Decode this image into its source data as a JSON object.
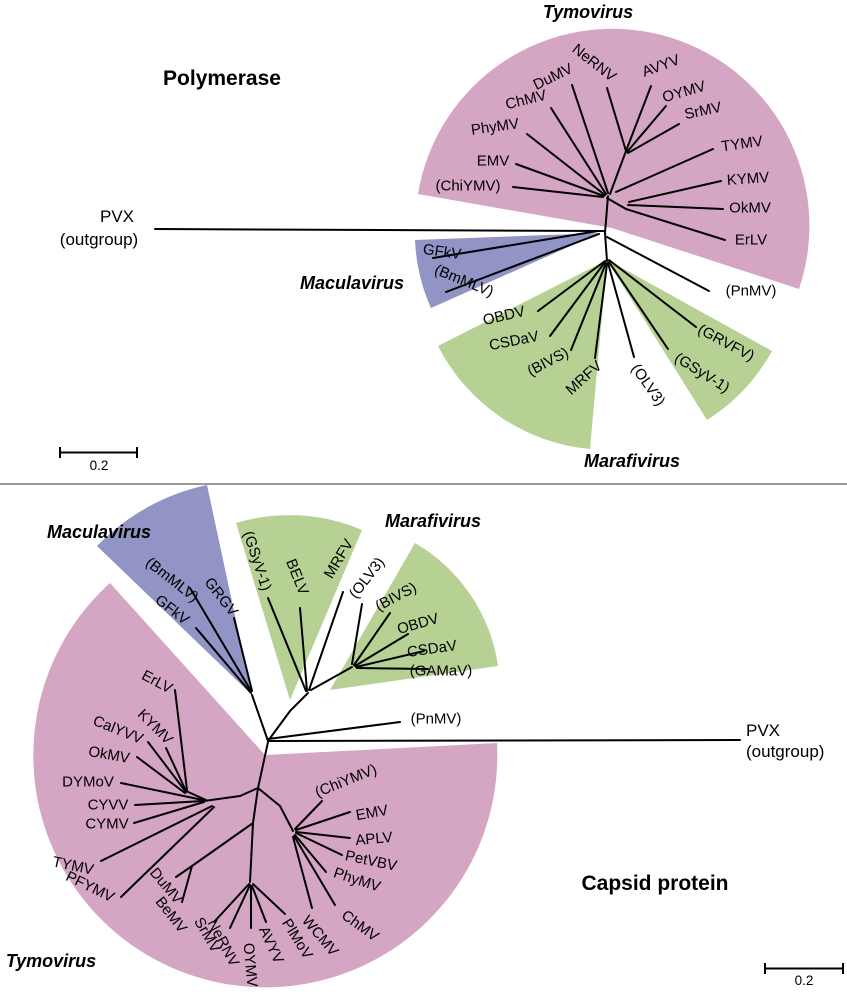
{
  "colors": {
    "tymovirus_pink": "#d5a6c3",
    "maculavirus_purple": "#9194c4",
    "marafivirus_green": "#b7d194",
    "branch": "#000000",
    "divider": "#9a9a9a"
  },
  "polymerase_tree": {
    "title": "Polymerase",
    "tymovirus_label": "Tymovirus",
    "maculavirus_label": "Maculavirus",
    "marafivirus_label": "Marafivirus",
    "outgroup_name": "PVX",
    "outgroup_suffix": "(outgroup)",
    "scale_bar_value": "0.2",
    "taxa": {
      "chiymv": "(ChiYMV)",
      "emv": "EMV",
      "phymv": "PhyMV",
      "chmv": "ChMV",
      "dumv": "DuMV",
      "nernv": "NeRNV",
      "avyv": "AVYV",
      "oymv": "OYMV",
      "srmv": "SrMV",
      "tymv": "TYMV",
      "kymv": "KYMV",
      "okmv": "OkMV",
      "erlv": "ErLV",
      "pnmv": "(PnMV)",
      "gfkv": "GFkV",
      "bmmlv": "(BmMLV)",
      "obdv": "OBDV",
      "csdav": "CSDaV",
      "bivs": "(BIVS)",
      "mrfv": "MRFV",
      "olv3": "(OLV3)",
      "gsyv1": "(GSyV-1)",
      "grvfv": "(GRVFV)"
    }
  },
  "capsid_tree": {
    "title": "Capsid protein",
    "tymovirus_label": "Tymovirus",
    "maculavirus_label": "Maculavirus",
    "marafivirus_label": "Marafivirus",
    "outgroup_name": "PVX",
    "outgroup_suffix": "(outgroup)",
    "scale_bar_value": "0.2",
    "taxa": {
      "erlv": "ErLV",
      "kymv": "KYMV",
      "calyvv": "CalYVV",
      "okmv": "OkMV",
      "dymov": "DYMoV",
      "cyvv": "CYVV",
      "cymv": "CYMV",
      "tymv": "TYMV",
      "pfymv": "PFYMV",
      "dumv": "DuMV",
      "bemv": "BeMV",
      "srmv": "SrMV",
      "nernv": "NeRNV",
      "oymv": "OYMV",
      "avyv": "AVYV",
      "plmov": "PlMoV",
      "wcmv": "WCMV",
      "chmv": "ChMV",
      "phymv": "PhyMV",
      "petvbv": "PetVBV",
      "aplv": "APLV",
      "emv": "EMV",
      "chiymv": "(ChiYMV)",
      "pnmv": "(PnMV)",
      "gfkv": "GFkV",
      "bmmlv": "(BmMLV)",
      "grgv": "GRGV",
      "gsyv1": "(GSyV-1)",
      "belv": "BELV",
      "mrfv": "MRFV",
      "olv3": "(OLV3)",
      "bivs": "(BIVS)",
      "obdv": "OBDV",
      "csdav": "CSDaV",
      "gamav": "(GAMaV)"
    }
  }
}
